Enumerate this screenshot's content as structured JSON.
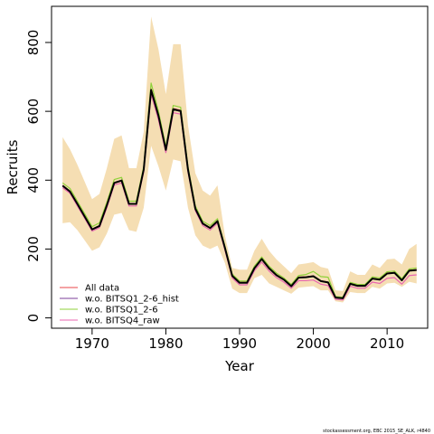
{
  "chart_data": {
    "type": "line",
    "xlabel": "Year",
    "ylabel": "Recruits",
    "xlim": [
      1964.5,
      2015.5
    ],
    "ylim": [
      -30,
      905
    ],
    "xticks": [
      1970,
      1980,
      1990,
      2000,
      2010
    ],
    "yticks": [
      0,
      200,
      400,
      600,
      800
    ],
    "grid": false,
    "legend_placement": "bottom-left",
    "x": [
      1966,
      1967,
      1968,
      1969,
      1970,
      1971,
      1972,
      1973,
      1974,
      1975,
      1976,
      1977,
      1978,
      1979,
      1980,
      1981,
      1982,
      1983,
      1984,
      1985,
      1986,
      1987,
      1988,
      1989,
      1990,
      1991,
      1992,
      1993,
      1994,
      1995,
      1996,
      1997,
      1998,
      1999,
      2000,
      2001,
      2002,
      2003,
      2004,
      2005,
      2006,
      2007,
      2008,
      2009,
      2010,
      2011,
      2012,
      2013,
      2014
    ],
    "band": {
      "color": "#f5deb3",
      "upper": [
        525,
        490,
        445,
        395,
        345,
        360,
        435,
        520,
        530,
        435,
        435,
        540,
        875,
        780,
        650,
        795,
        795,
        560,
        420,
        370,
        355,
        385,
        240,
        145,
        140,
        140,
        195,
        230,
        195,
        170,
        150,
        130,
        155,
        158,
        162,
        148,
        143,
        80,
        78,
        135,
        125,
        125,
        155,
        145,
        170,
        172,
        155,
        200,
        215
      ],
      "lower": [
        275,
        278,
        255,
        225,
        195,
        205,
        245,
        300,
        305,
        255,
        250,
        320,
        500,
        440,
        370,
        460,
        455,
        320,
        240,
        210,
        200,
        210,
        160,
        85,
        72,
        72,
        115,
        125,
        100,
        90,
        80,
        70,
        88,
        90,
        92,
        80,
        80,
        48,
        45,
        75,
        72,
        72,
        90,
        85,
        100,
        102,
        90,
        105,
        100
      ]
    },
    "series": [
      {
        "name": "All data",
        "color": "#e8454a",
        "values": [
          385,
          368,
          332,
          295,
          258,
          268,
          328,
          393,
          400,
          332,
          332,
          432,
          665,
          590,
          490,
          608,
          603,
          432,
          318,
          275,
          262,
          282,
          205,
          123,
          103,
          103,
          145,
          172,
          145,
          125,
          112,
          93,
          118,
          119,
          122,
          108,
          104,
          60,
          58,
          100,
          94,
          94,
          115,
          112,
          130,
          132,
          110,
          138,
          140
        ]
      },
      {
        "name": "w.o. BITSQ1_2-6_hist",
        "color": "#7b3f99",
        "values": [
          383,
          367,
          330,
          294,
          257,
          267,
          326,
          392,
          399,
          330,
          330,
          430,
          660,
          585,
          487,
          605,
          600,
          430,
          317,
          274,
          261,
          280,
          204,
          122,
          102,
          102,
          144,
          171,
          144,
          124,
          111,
          92,
          117,
          118,
          121,
          107,
          103,
          59,
          57,
          99,
          93,
          93,
          114,
          111,
          129,
          131,
          109,
          137,
          139
        ]
      },
      {
        "name": "w.o. BITSQ1_2-6",
        "color": "#8fd13a",
        "values": [
          392,
          376,
          339,
          302,
          265,
          276,
          336,
          402,
          408,
          339,
          339,
          440,
          682,
          600,
          498,
          617,
          612,
          440,
          325,
          281,
          268,
          288,
          210,
          127,
          107,
          107,
          150,
          177,
          150,
          130,
          116,
          97,
          123,
          126,
          135,
          120,
          118,
          62,
          60,
          103,
          97,
          97,
          119,
          116,
          134,
          136,
          114,
          142,
          145
        ]
      },
      {
        "name": "w.o. BITSQ4_raw",
        "color": "#e866b0",
        "values": [
          378,
          362,
          325,
          289,
          252,
          262,
          320,
          386,
          392,
          325,
          325,
          424,
          650,
          575,
          480,
          596,
          592,
          424,
          311,
          268,
          255,
          275,
          198,
          116,
          96,
          96,
          137,
          162,
          136,
          117,
          104,
          86,
          108,
          108,
          110,
          98,
          94,
          54,
          52,
          92,
          86,
          86,
          104,
          100,
          115,
          117,
          98,
          123,
          125
        ]
      },
      {
        "name": "",
        "color": "#000000",
        "values": [
          384,
          367,
          331,
          294,
          257,
          267,
          327,
          392,
          399,
          331,
          331,
          431,
          662,
          587,
          488,
          606,
          601,
          431,
          317,
          274,
          261,
          281,
          204,
          122,
          102,
          102,
          144,
          171,
          144,
          124,
          111,
          92,
          117,
          118,
          121,
          107,
          103,
          59,
          57,
          99,
          93,
          93,
          114,
          111,
          129,
          131,
          109,
          137,
          139
        ]
      }
    ]
  },
  "footer": {
    "credit": "stockassessment.org, EBC 2015_SE_ALK, r4840"
  }
}
